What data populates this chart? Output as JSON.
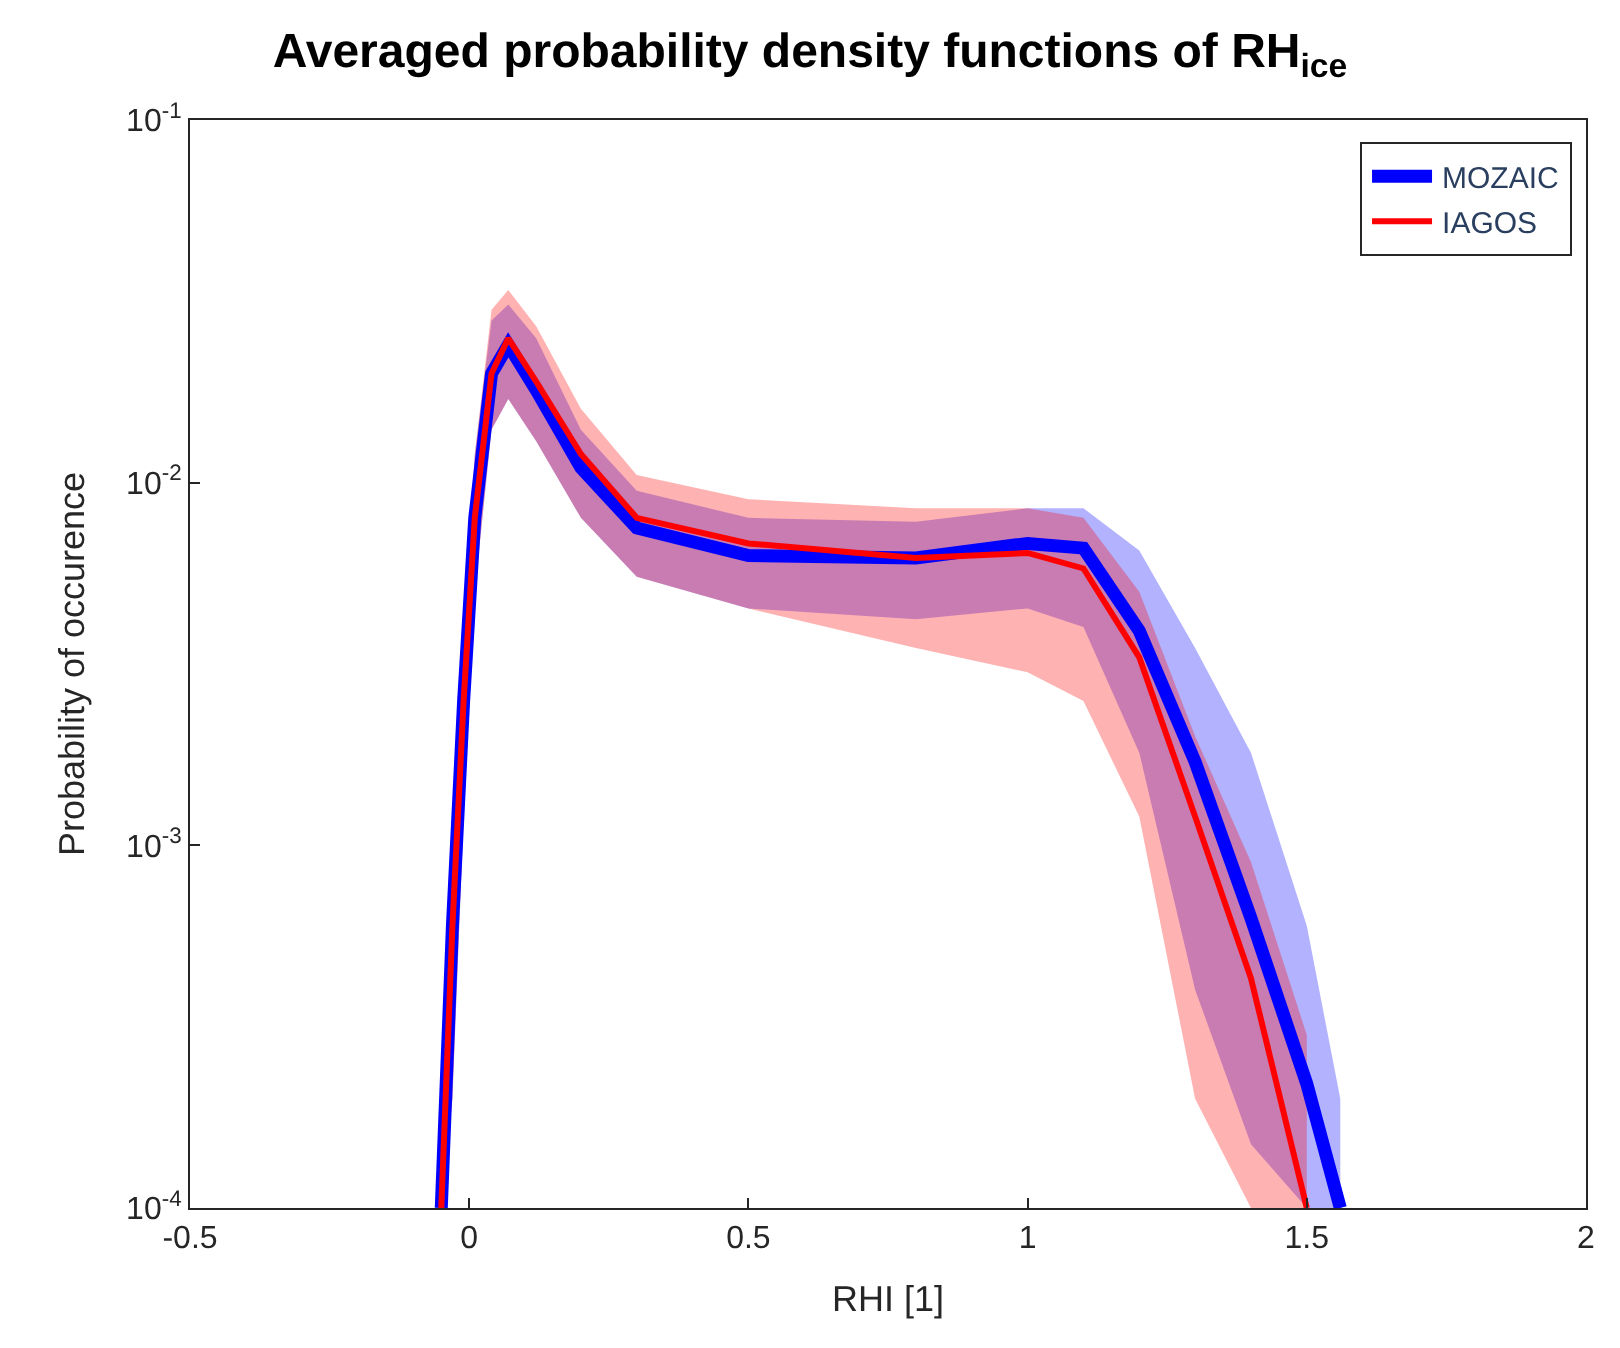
{
  "chart_data": {
    "type": "line",
    "title": "Averaged probability density functions of RH$_{ice}$",
    "xlabel": "RHI [1]",
    "ylabel": "Probability of occurence",
    "log": "y",
    "legend": "top right",
    "line_style": "solid",
    "marker": "none",
    "xlim": [
      -0.5,
      2
    ],
    "xticks": [
      -0.5,
      0,
      0.5,
      1,
      1.5,
      2
    ],
    "ylim": [
      0.0001,
      0.1
    ],
    "yticks": [
      {
        "value": 0.0001,
        "label": "10$^{-4}$"
      },
      {
        "value": 0.001,
        "label": "10$^{-3}$"
      },
      {
        "value": 0.01,
        "label": "10$^{-2}$"
      },
      {
        "value": 0.1,
        "label": "10$^{-1}$"
      }
    ],
    "series": [
      {
        "name": "MOZAIC",
        "color": "#0000ff",
        "x": [
          -0.05,
          -0.03,
          -0.01,
          0.01,
          0.04,
          0.07,
          0.12,
          0.2,
          0.3,
          0.5,
          0.8,
          1.0,
          1.1,
          1.2,
          1.3,
          1.4,
          1.5,
          1.56
        ],
        "values": [
          0.0001,
          0.0006,
          0.0025,
          0.008,
          0.02,
          0.024,
          0.018,
          0.011,
          0.0075,
          0.0063,
          0.0062,
          0.0068,
          0.0066,
          0.0039,
          0.0017,
          0.00063,
          0.00022,
          0.0001
        ],
        "lower": [
          0.0001,
          0.0002,
          0.0012,
          0.005,
          0.014,
          0.017,
          0.013,
          0.008,
          0.0055,
          0.0045,
          0.0042,
          0.0045,
          0.004,
          0.0018,
          0.0004,
          0.00015,
          0.0001,
          0.0001
        ],
        "upper": [
          0.0002,
          0.001,
          0.004,
          0.012,
          0.028,
          0.031,
          0.025,
          0.014,
          0.0095,
          0.008,
          0.0078,
          0.0085,
          0.0085,
          0.0065,
          0.0035,
          0.0018,
          0.0006,
          0.0002
        ]
      },
      {
        "name": "IAGOS",
        "color": "#ff0000",
        "x": [
          -0.05,
          -0.03,
          -0.01,
          0.01,
          0.04,
          0.07,
          0.12,
          0.2,
          0.3,
          0.5,
          0.8,
          1.0,
          1.1,
          1.2,
          1.3,
          1.4,
          1.5
        ],
        "values": [
          0.0001,
          0.0006,
          0.0025,
          0.008,
          0.02,
          0.025,
          0.019,
          0.012,
          0.008,
          0.0068,
          0.0062,
          0.0064,
          0.0058,
          0.0033,
          0.0012,
          0.00043,
          0.0001
        ],
        "lower": [
          0.0001,
          0.0002,
          0.0012,
          0.005,
          0.014,
          0.017,
          0.013,
          0.008,
          0.0055,
          0.0045,
          0.0035,
          0.003,
          0.0025,
          0.0012,
          0.0002,
          0.0001,
          0.0001
        ],
        "upper": [
          0.0002,
          0.001,
          0.004,
          0.012,
          0.03,
          0.034,
          0.027,
          0.016,
          0.0105,
          0.009,
          0.0085,
          0.0085,
          0.008,
          0.005,
          0.002,
          0.0009,
          0.0003
        ]
      }
    ]
  }
}
